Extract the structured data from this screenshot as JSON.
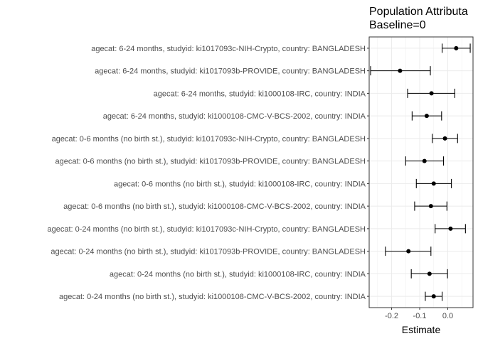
{
  "chart_data": {
    "type": "forest",
    "title": [
      "Population Attributa",
      "Baseline=0"
    ],
    "xlabel": "Estimate",
    "ylabel": "",
    "xlim": [
      -0.28,
      0.09
    ],
    "xticks": [
      -0.2,
      -0.1,
      0.0
    ],
    "xtick_labels": [
      "-0.2",
      "-0.1",
      "0.0"
    ],
    "grid": true,
    "rows": [
      {
        "label": "agecat: 6-24 months, studyid: ki1017093c-NIH-Crypto, country: BANGLADESH",
        "estimate": 0.03,
        "lower": -0.02,
        "upper": 0.08
      },
      {
        "label": "agecat: 6-24 months, studyid: ki1017093b-PROVIDE, country: BANGLADESH",
        "estimate": -0.17,
        "lower": -0.275,
        "upper": -0.062
      },
      {
        "label": "agecat: 6-24 months, studyid: ki1000108-IRC, country: INDIA",
        "estimate": -0.058,
        "lower": -0.143,
        "upper": 0.025
      },
      {
        "label": "agecat: 6-24 months, studyid: ki1000108-CMC-V-BCS-2002, country: INDIA",
        "estimate": -0.075,
        "lower": -0.127,
        "upper": -0.022
      },
      {
        "label": "agecat: 0-6 months (no birth st.), studyid: ki1017093c-NIH-Crypto, country: BANGLADESH",
        "estimate": -0.01,
        "lower": -0.055,
        "upper": 0.035
      },
      {
        "label": "agecat: 0-6 months (no birth st.), studyid: ki1017093b-PROVIDE, country: BANGLADESH",
        "estimate": -0.083,
        "lower": -0.15,
        "upper": -0.015
      },
      {
        "label": "agecat: 0-6 months (no birth st.), studyid: ki1000108-IRC, country: INDIA",
        "estimate": -0.05,
        "lower": -0.112,
        "upper": 0.013
      },
      {
        "label": "agecat: 0-6 months (no birth st.), studyid: ki1000108-CMC-V-BCS-2002, country: INDIA",
        "estimate": -0.06,
        "lower": -0.118,
        "upper": -0.003
      },
      {
        "label": "agecat: 0-24 months (no birth st.), studyid: ki1017093c-NIH-Crypto, country: BANGLADESH",
        "estimate": 0.01,
        "lower": -0.045,
        "upper": 0.063
      },
      {
        "label": "agecat: 0-24 months (no birth st.), studyid: ki1017093b-PROVIDE, country: BANGLADESH",
        "estimate": -0.14,
        "lower": -0.222,
        "upper": -0.06
      },
      {
        "label": "agecat: 0-24 months (no birth st.), studyid: ki1000108-IRC, country: INDIA",
        "estimate": -0.065,
        "lower": -0.13,
        "upper": -0.001
      },
      {
        "label": "agecat: 0-24 months (no birth st.), studyid: ki1000108-CMC-V-BCS-2002, country: INDIA",
        "estimate": -0.05,
        "lower": -0.08,
        "upper": -0.02
      }
    ]
  }
}
